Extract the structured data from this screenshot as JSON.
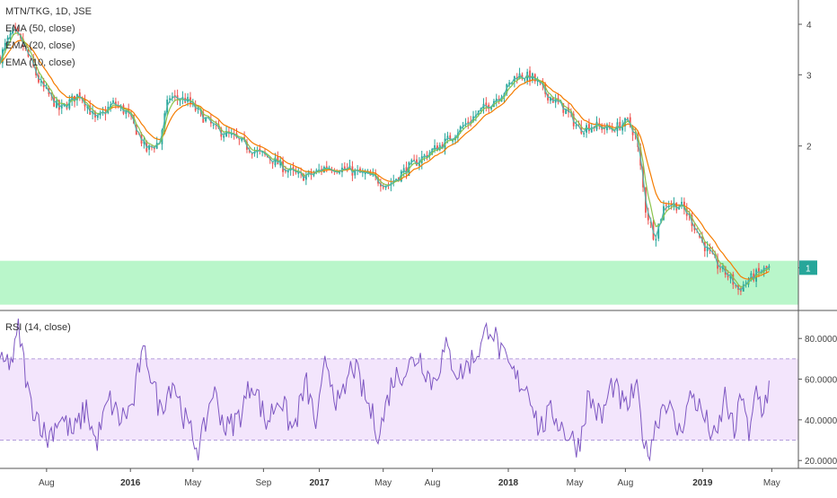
{
  "chart_data": [
    {
      "type": "candlestick",
      "title": "MTN/TKG, 1D, JSE",
      "indicators": [
        "EMA (50, close)",
        "EMA (20, close)",
        "EMA (10, close)"
      ],
      "y_scale": "log",
      "ylim": [
        0.8,
        4.5
      ],
      "y_ticks": [
        "4",
        "3",
        "2",
        "1"
      ],
      "price_marker": "1",
      "highlight_zone": [
        0.81,
        1.04
      ],
      "colors": {
        "up": "#26a69a",
        "down": "#ef5350",
        "ema50": "#f57c00",
        "ema20": "#8bc34a",
        "ema10": "#4db6ac",
        "zone": "#b9f6ca",
        "marker": "#26a69a"
      },
      "keypoints": [
        {
          "t": 0,
          "p": 3.3
        },
        {
          "t": 0.04,
          "p": 3.55
        },
        {
          "t": 0.1,
          "p": 3.85
        },
        {
          "t": 0.16,
          "p": 3.6
        },
        {
          "t": 0.3,
          "p": 2.85
        },
        {
          "t": 0.45,
          "p": 2.45
        },
        {
          "t": 0.6,
          "p": 2.7
        },
        {
          "t": 0.72,
          "p": 2.3
        },
        {
          "t": 0.85,
          "p": 2.55
        },
        {
          "t": 0.95,
          "p": 2.42
        },
        {
          "t": 1.1,
          "p": 1.95
        },
        {
          "t": 1.2,
          "p": 2.05
        },
        {
          "t": 1.27,
          "p": 2.65
        },
        {
          "t": 1.4,
          "p": 2.6
        },
        {
          "t": 1.5,
          "p": 2.4
        },
        {
          "t": 1.62,
          "p": 2.2
        },
        {
          "t": 1.75,
          "p": 2.1
        },
        {
          "t": 1.9,
          "p": 1.95
        },
        {
          "t": 2.05,
          "p": 1.85
        },
        {
          "t": 2.15,
          "p": 1.75
        },
        {
          "t": 2.25,
          "p": 1.68
        },
        {
          "t": 2.35,
          "p": 1.7
        },
        {
          "t": 2.45,
          "p": 1.78
        },
        {
          "t": 2.6,
          "p": 1.75
        },
        {
          "t": 2.78,
          "p": 1.68
        },
        {
          "t": 2.92,
          "p": 1.6
        },
        {
          "t": 3.02,
          "p": 1.72
        },
        {
          "t": 3.2,
          "p": 1.9
        },
        {
          "t": 3.35,
          "p": 2.05
        },
        {
          "t": 3.52,
          "p": 2.3
        },
        {
          "t": 3.68,
          "p": 2.55
        },
        {
          "t": 3.8,
          "p": 2.75
        },
        {
          "t": 3.88,
          "p": 3.0
        },
        {
          "t": 4.0,
          "p": 2.95
        },
        {
          "t": 4.1,
          "p": 2.7
        },
        {
          "t": 4.25,
          "p": 2.45
        },
        {
          "t": 4.35,
          "p": 2.2
        },
        {
          "t": 4.45,
          "p": 2.25
        },
        {
          "t": 4.6,
          "p": 2.2
        },
        {
          "t": 4.72,
          "p": 2.3
        },
        {
          "t": 4.78,
          "p": 2.1
        },
        {
          "t": 4.85,
          "p": 1.4
        },
        {
          "t": 4.92,
          "p": 1.18
        },
        {
          "t": 5.0,
          "p": 1.45
        },
        {
          "t": 5.12,
          "p": 1.42
        },
        {
          "t": 5.2,
          "p": 1.3
        },
        {
          "t": 5.28,
          "p": 1.15
        },
        {
          "t": 5.38,
          "p": 1.02
        },
        {
          "t": 5.48,
          "p": 0.95
        },
        {
          "t": 5.55,
          "p": 0.88
        },
        {
          "t": 5.62,
          "p": 0.93
        },
        {
          "t": 5.7,
          "p": 0.97
        },
        {
          "t": 5.78,
          "p": 1.0
        }
      ],
      "x_ticks": [
        {
          "label": "Aug",
          "t": 0.35,
          "bold": false
        },
        {
          "label": "2016",
          "t": 0.98,
          "bold": true
        },
        {
          "label": "May",
          "t": 1.45,
          "bold": false
        },
        {
          "label": "Sep",
          "t": 1.98,
          "bold": false
        },
        {
          "label": "2017",
          "t": 2.4,
          "bold": true
        },
        {
          "label": "May",
          "t": 2.88,
          "bold": false
        },
        {
          "label": "Aug",
          "t": 3.25,
          "bold": false
        },
        {
          "label": "2018",
          "t": 3.82,
          "bold": true
        },
        {
          "label": "May",
          "t": 4.32,
          "bold": false
        },
        {
          "label": "Aug",
          "t": 4.7,
          "bold": false
        },
        {
          "label": "2019",
          "t": 5.28,
          "bold": true
        },
        {
          "label": "May",
          "t": 5.8,
          "bold": false
        }
      ]
    },
    {
      "type": "line",
      "title": "RSI (14, close)",
      "ylim": [
        17,
        92
      ],
      "y_ticks": [
        "80.0000",
        "60.0000",
        "40.0000",
        "20.0000"
      ],
      "band": [
        30,
        70
      ],
      "colors": {
        "line": "#7e57c2",
        "band": "#f3e5fc",
        "bandline": "#b39ddb"
      },
      "keypoints": [
        {
          "t": 0,
          "v": 66
        },
        {
          "t": 0.1,
          "v": 70
        },
        {
          "t": 0.14,
          "v": 85
        },
        {
          "t": 0.22,
          "v": 50
        },
        {
          "t": 0.3,
          "v": 40
        },
        {
          "t": 0.35,
          "v": 30
        },
        {
          "t": 0.45,
          "v": 42
        },
        {
          "t": 0.55,
          "v": 33
        },
        {
          "t": 0.65,
          "v": 46
        },
        {
          "t": 0.72,
          "v": 28
        },
        {
          "t": 0.82,
          "v": 50
        },
        {
          "t": 0.9,
          "v": 40
        },
        {
          "t": 1.0,
          "v": 47
        },
        {
          "t": 1.05,
          "v": 68
        },
        {
          "t": 1.1,
          "v": 72
        },
        {
          "t": 1.2,
          "v": 45
        },
        {
          "t": 1.3,
          "v": 60
        },
        {
          "t": 1.4,
          "v": 38
        },
        {
          "t": 1.5,
          "v": 25
        },
        {
          "t": 1.6,
          "v": 55
        },
        {
          "t": 1.7,
          "v": 35
        },
        {
          "t": 1.8,
          "v": 42
        },
        {
          "t": 1.9,
          "v": 60
        },
        {
          "t": 2.0,
          "v": 38
        },
        {
          "t": 2.1,
          "v": 52
        },
        {
          "t": 2.2,
          "v": 34
        },
        {
          "t": 2.3,
          "v": 58
        },
        {
          "t": 2.38,
          "v": 36
        },
        {
          "t": 2.45,
          "v": 70
        },
        {
          "t": 2.55,
          "v": 45
        },
        {
          "t": 2.65,
          "v": 68
        },
        {
          "t": 2.75,
          "v": 50
        },
        {
          "t": 2.85,
          "v": 33
        },
        {
          "t": 2.95,
          "v": 60
        },
        {
          "t": 3.05,
          "v": 65
        },
        {
          "t": 3.15,
          "v": 72
        },
        {
          "t": 3.25,
          "v": 58
        },
        {
          "t": 3.35,
          "v": 75
        },
        {
          "t": 3.45,
          "v": 62
        },
        {
          "t": 3.55,
          "v": 70
        },
        {
          "t": 3.62,
          "v": 77
        },
        {
          "t": 3.68,
          "v": 88
        },
        {
          "t": 3.78,
          "v": 70
        },
        {
          "t": 3.88,
          "v": 60
        },
        {
          "t": 3.98,
          "v": 55
        },
        {
          "t": 4.05,
          "v": 35
        },
        {
          "t": 4.15,
          "v": 44
        },
        {
          "t": 4.25,
          "v": 34
        },
        {
          "t": 4.35,
          "v": 27
        },
        {
          "t": 4.42,
          "v": 52
        },
        {
          "t": 4.52,
          "v": 40
        },
        {
          "t": 4.6,
          "v": 58
        },
        {
          "t": 4.7,
          "v": 45
        },
        {
          "t": 4.78,
          "v": 56
        },
        {
          "t": 4.86,
          "v": 22
        },
        {
          "t": 4.94,
          "v": 40
        },
        {
          "t": 5.0,
          "v": 51
        },
        {
          "t": 5.1,
          "v": 33
        },
        {
          "t": 5.2,
          "v": 53
        },
        {
          "t": 5.3,
          "v": 40
        },
        {
          "t": 5.38,
          "v": 29
        },
        {
          "t": 5.45,
          "v": 52
        },
        {
          "t": 5.52,
          "v": 32
        },
        {
          "t": 5.58,
          "v": 57
        },
        {
          "t": 5.63,
          "v": 27
        },
        {
          "t": 5.68,
          "v": 56
        },
        {
          "t": 5.73,
          "v": 45
        },
        {
          "t": 5.78,
          "v": 56
        }
      ]
    }
  ]
}
